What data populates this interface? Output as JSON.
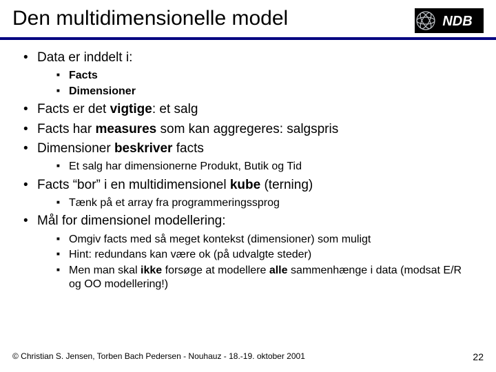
{
  "colors": {
    "rule": "#000080",
    "logo_bg": "#000000",
    "logo_text": "#ffffff",
    "logo_disc": "#9aa0a6",
    "text": "#000000",
    "background": "#ffffff"
  },
  "title": "Den multidimensionelle model",
  "logo_text": "NDB",
  "bullets": [
    {
      "html": "Data er inddelt i:",
      "sub": [
        {
          "html": "<b>Facts</b>"
        },
        {
          "html": "<b>Dimensioner</b>"
        }
      ]
    },
    {
      "html": "Facts er det <b>vigtige</b>: et salg"
    },
    {
      "html": "Facts har <b>measures</b> som kan aggregeres: salgspris"
    },
    {
      "html": "Dimensioner <b>beskriver</b> facts",
      "sub": [
        {
          "html": "Et salg har dimensionerne Produkt, Butik og Tid"
        }
      ]
    },
    {
      "html": "Facts “bor” i en multidimensionel <b>kube</b> (terning)",
      "sub": [
        {
          "html": "Tænk på et array fra programmeringssprog"
        }
      ]
    },
    {
      "html": "Mål for dimensionel modellering:",
      "sub": [
        {
          "html": "Omgiv facts med så meget kontekst (dimensioner) som muligt"
        },
        {
          "html": "Hint: redundans kan være ok (på udvalgte steder)"
        },
        {
          "html": "Men man skal <b>ikke</b> forsøge at modellere <b>alle</b> sammenhænge i data (modsat E/R og OO modellering!)"
        }
      ]
    }
  ],
  "footer_left": "© Christian S. Jensen, Torben Bach Pedersen - Nouhauz - 18.-19. oktober 2001",
  "page_number": "22"
}
